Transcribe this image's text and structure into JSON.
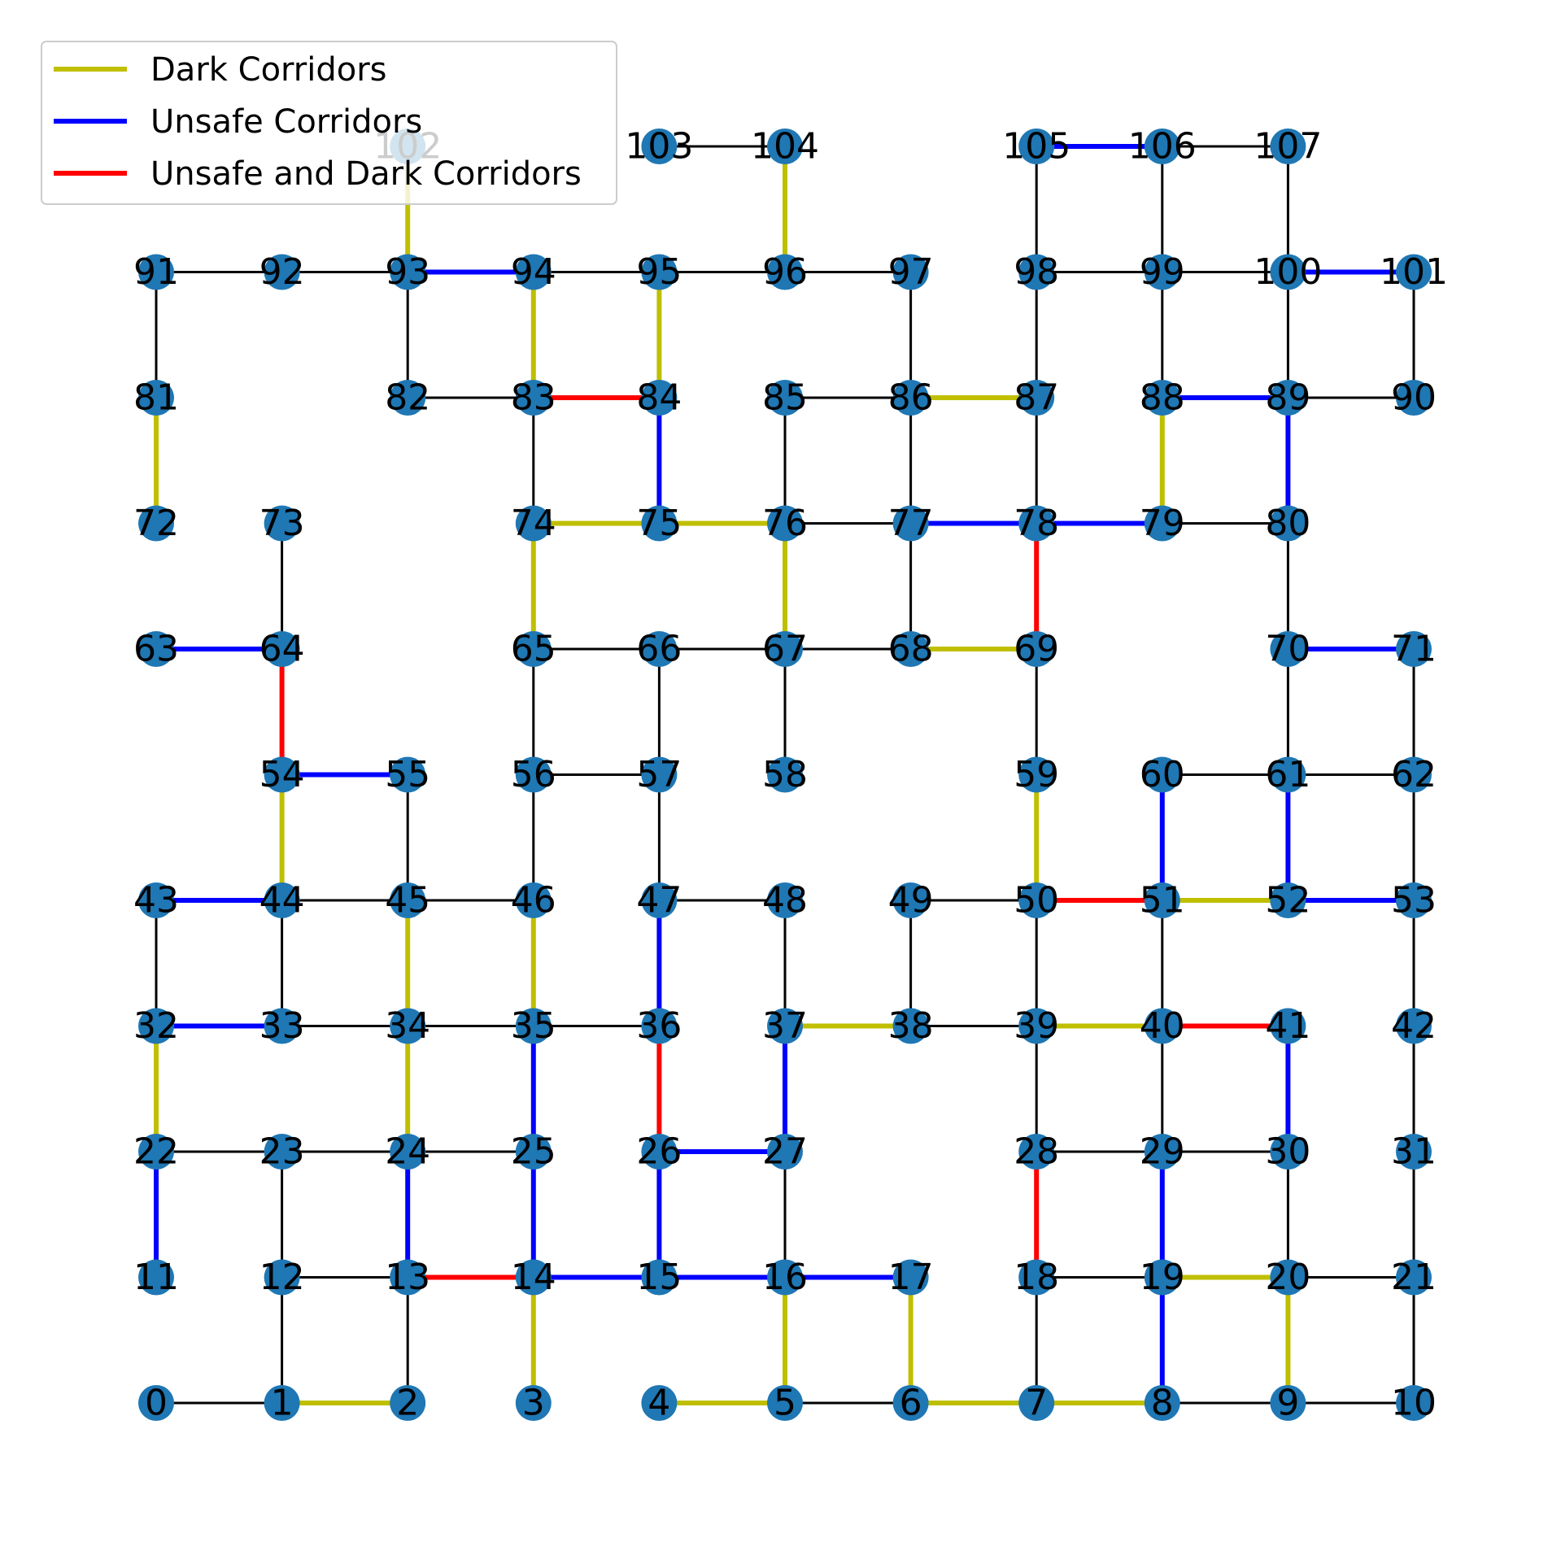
{
  "colors": {
    "normal": "#000000",
    "dark": "#bfbf00",
    "unsafe": "#0000ff",
    "unsafe_dark": "#ff0000",
    "node": "#1f77b4",
    "legend_border": "#cccccc"
  },
  "legend": {
    "placement": "upper-left",
    "entries": [
      {
        "label": "Dark Corridors",
        "type": "dark"
      },
      {
        "label": "Unsafe Corridors",
        "type": "unsafe"
      },
      {
        "label": "Unsafe and Dark Corridors",
        "type": "unsafe_dark"
      }
    ]
  },
  "graph": {
    "layout": "grid",
    "nodes": [
      {
        "id": 0,
        "col": 0,
        "row": 0
      },
      {
        "id": 1,
        "col": 1,
        "row": 0
      },
      {
        "id": 2,
        "col": 2,
        "row": 0
      },
      {
        "id": 3,
        "col": 3,
        "row": 0
      },
      {
        "id": 4,
        "col": 4,
        "row": 0
      },
      {
        "id": 5,
        "col": 5,
        "row": 0
      },
      {
        "id": 6,
        "col": 6,
        "row": 0
      },
      {
        "id": 7,
        "col": 7,
        "row": 0
      },
      {
        "id": 8,
        "col": 8,
        "row": 0
      },
      {
        "id": 9,
        "col": 9,
        "row": 0
      },
      {
        "id": 10,
        "col": 10,
        "row": 0
      },
      {
        "id": 11,
        "col": 0,
        "row": 1
      },
      {
        "id": 12,
        "col": 1,
        "row": 1
      },
      {
        "id": 13,
        "col": 2,
        "row": 1
      },
      {
        "id": 14,
        "col": 3,
        "row": 1
      },
      {
        "id": 15,
        "col": 4,
        "row": 1
      },
      {
        "id": 16,
        "col": 5,
        "row": 1
      },
      {
        "id": 17,
        "col": 6,
        "row": 1
      },
      {
        "id": 18,
        "col": 7,
        "row": 1
      },
      {
        "id": 19,
        "col": 8,
        "row": 1
      },
      {
        "id": 20,
        "col": 9,
        "row": 1
      },
      {
        "id": 21,
        "col": 10,
        "row": 1
      },
      {
        "id": 22,
        "col": 0,
        "row": 2
      },
      {
        "id": 23,
        "col": 1,
        "row": 2
      },
      {
        "id": 24,
        "col": 2,
        "row": 2
      },
      {
        "id": 25,
        "col": 3,
        "row": 2
      },
      {
        "id": 26,
        "col": 4,
        "row": 2
      },
      {
        "id": 27,
        "col": 5,
        "row": 2
      },
      {
        "id": 28,
        "col": 7,
        "row": 2
      },
      {
        "id": 29,
        "col": 8,
        "row": 2
      },
      {
        "id": 30,
        "col": 9,
        "row": 2
      },
      {
        "id": 31,
        "col": 10,
        "row": 2
      },
      {
        "id": 32,
        "col": 0,
        "row": 3
      },
      {
        "id": 33,
        "col": 1,
        "row": 3
      },
      {
        "id": 34,
        "col": 2,
        "row": 3
      },
      {
        "id": 35,
        "col": 3,
        "row": 3
      },
      {
        "id": 36,
        "col": 4,
        "row": 3
      },
      {
        "id": 37,
        "col": 5,
        "row": 3
      },
      {
        "id": 38,
        "col": 6,
        "row": 3
      },
      {
        "id": 39,
        "col": 7,
        "row": 3
      },
      {
        "id": 40,
        "col": 8,
        "row": 3
      },
      {
        "id": 41,
        "col": 9,
        "row": 3
      },
      {
        "id": 42,
        "col": 10,
        "row": 3
      },
      {
        "id": 43,
        "col": 0,
        "row": 4
      },
      {
        "id": 44,
        "col": 1,
        "row": 4
      },
      {
        "id": 45,
        "col": 2,
        "row": 4
      },
      {
        "id": 46,
        "col": 3,
        "row": 4
      },
      {
        "id": 47,
        "col": 4,
        "row": 4
      },
      {
        "id": 48,
        "col": 5,
        "row": 4
      },
      {
        "id": 49,
        "col": 6,
        "row": 4
      },
      {
        "id": 50,
        "col": 7,
        "row": 4
      },
      {
        "id": 51,
        "col": 8,
        "row": 4
      },
      {
        "id": 52,
        "col": 9,
        "row": 4
      },
      {
        "id": 53,
        "col": 10,
        "row": 4
      },
      {
        "id": 54,
        "col": 1,
        "row": 5
      },
      {
        "id": 55,
        "col": 2,
        "row": 5
      },
      {
        "id": 56,
        "col": 3,
        "row": 5
      },
      {
        "id": 57,
        "col": 4,
        "row": 5
      },
      {
        "id": 58,
        "col": 5,
        "row": 5
      },
      {
        "id": 59,
        "col": 7,
        "row": 5
      },
      {
        "id": 60,
        "col": 8,
        "row": 5
      },
      {
        "id": 61,
        "col": 9,
        "row": 5
      },
      {
        "id": 62,
        "col": 10,
        "row": 5
      },
      {
        "id": 63,
        "col": 0,
        "row": 6
      },
      {
        "id": 64,
        "col": 1,
        "row": 6
      },
      {
        "id": 65,
        "col": 3,
        "row": 6
      },
      {
        "id": 66,
        "col": 4,
        "row": 6
      },
      {
        "id": 67,
        "col": 5,
        "row": 6
      },
      {
        "id": 68,
        "col": 6,
        "row": 6
      },
      {
        "id": 69,
        "col": 7,
        "row": 6
      },
      {
        "id": 70,
        "col": 9,
        "row": 6
      },
      {
        "id": 71,
        "col": 10,
        "row": 6
      },
      {
        "id": 72,
        "col": 0,
        "row": 7
      },
      {
        "id": 73,
        "col": 1,
        "row": 7
      },
      {
        "id": 74,
        "col": 3,
        "row": 7
      },
      {
        "id": 75,
        "col": 4,
        "row": 7
      },
      {
        "id": 76,
        "col": 5,
        "row": 7
      },
      {
        "id": 77,
        "col": 6,
        "row": 7
      },
      {
        "id": 78,
        "col": 7,
        "row": 7
      },
      {
        "id": 79,
        "col": 8,
        "row": 7
      },
      {
        "id": 80,
        "col": 9,
        "row": 7
      },
      {
        "id": 81,
        "col": 0,
        "row": 8
      },
      {
        "id": 82,
        "col": 2,
        "row": 8
      },
      {
        "id": 83,
        "col": 3,
        "row": 8
      },
      {
        "id": 84,
        "col": 4,
        "row": 8
      },
      {
        "id": 85,
        "col": 5,
        "row": 8
      },
      {
        "id": 86,
        "col": 6,
        "row": 8
      },
      {
        "id": 87,
        "col": 7,
        "row": 8
      },
      {
        "id": 88,
        "col": 8,
        "row": 8
      },
      {
        "id": 89,
        "col": 9,
        "row": 8
      },
      {
        "id": 90,
        "col": 10,
        "row": 8
      },
      {
        "id": 91,
        "col": 0,
        "row": 9
      },
      {
        "id": 92,
        "col": 1,
        "row": 9
      },
      {
        "id": 93,
        "col": 2,
        "row": 9
      },
      {
        "id": 94,
        "col": 3,
        "row": 9
      },
      {
        "id": 95,
        "col": 4,
        "row": 9
      },
      {
        "id": 96,
        "col": 5,
        "row": 9
      },
      {
        "id": 97,
        "col": 6,
        "row": 9
      },
      {
        "id": 98,
        "col": 7,
        "row": 9
      },
      {
        "id": 99,
        "col": 8,
        "row": 9
      },
      {
        "id": 100,
        "col": 9,
        "row": 9
      },
      {
        "id": 101,
        "col": 10,
        "row": 9
      },
      {
        "id": 102,
        "col": 2,
        "row": 10
      },
      {
        "id": 103,
        "col": 4,
        "row": 10
      },
      {
        "id": 104,
        "col": 5,
        "row": 10
      },
      {
        "id": 105,
        "col": 7,
        "row": 10
      },
      {
        "id": 106,
        "col": 8,
        "row": 10
      },
      {
        "id": 107,
        "col": 9,
        "row": 10
      }
    ],
    "edges": [
      [
        0,
        1,
        "normal"
      ],
      [
        1,
        2,
        "dark"
      ],
      [
        4,
        5,
        "dark"
      ],
      [
        5,
        6,
        "normal"
      ],
      [
        6,
        7,
        "dark"
      ],
      [
        7,
        8,
        "dark"
      ],
      [
        8,
        9,
        "normal"
      ],
      [
        9,
        10,
        "normal"
      ],
      [
        12,
        13,
        "normal"
      ],
      [
        13,
        14,
        "unsafe_dark"
      ],
      [
        14,
        15,
        "unsafe"
      ],
      [
        15,
        16,
        "unsafe"
      ],
      [
        16,
        17,
        "unsafe"
      ],
      [
        18,
        19,
        "normal"
      ],
      [
        19,
        20,
        "dark"
      ],
      [
        20,
        21,
        "normal"
      ],
      [
        22,
        23,
        "normal"
      ],
      [
        23,
        24,
        "normal"
      ],
      [
        24,
        25,
        "normal"
      ],
      [
        26,
        27,
        "unsafe"
      ],
      [
        28,
        29,
        "normal"
      ],
      [
        29,
        30,
        "normal"
      ],
      [
        32,
        33,
        "unsafe"
      ],
      [
        33,
        34,
        "normal"
      ],
      [
        34,
        35,
        "normal"
      ],
      [
        35,
        36,
        "normal"
      ],
      [
        37,
        38,
        "dark"
      ],
      [
        38,
        39,
        "normal"
      ],
      [
        39,
        40,
        "dark"
      ],
      [
        40,
        41,
        "unsafe_dark"
      ],
      [
        43,
        44,
        "unsafe"
      ],
      [
        44,
        45,
        "normal"
      ],
      [
        45,
        46,
        "normal"
      ],
      [
        47,
        48,
        "normal"
      ],
      [
        49,
        50,
        "normal"
      ],
      [
        50,
        51,
        "unsafe_dark"
      ],
      [
        51,
        52,
        "dark"
      ],
      [
        52,
        53,
        "unsafe"
      ],
      [
        54,
        55,
        "unsafe"
      ],
      [
        56,
        57,
        "normal"
      ],
      [
        60,
        61,
        "normal"
      ],
      [
        61,
        62,
        "normal"
      ],
      [
        63,
        64,
        "unsafe"
      ],
      [
        65,
        66,
        "normal"
      ],
      [
        66,
        67,
        "normal"
      ],
      [
        67,
        68,
        "normal"
      ],
      [
        68,
        69,
        "dark"
      ],
      [
        70,
        71,
        "unsafe"
      ],
      [
        74,
        75,
        "dark"
      ],
      [
        75,
        76,
        "dark"
      ],
      [
        76,
        77,
        "normal"
      ],
      [
        77,
        78,
        "unsafe"
      ],
      [
        78,
        79,
        "unsafe"
      ],
      [
        79,
        80,
        "normal"
      ],
      [
        82,
        83,
        "normal"
      ],
      [
        83,
        84,
        "unsafe_dark"
      ],
      [
        85,
        86,
        "normal"
      ],
      [
        86,
        87,
        "dark"
      ],
      [
        88,
        89,
        "unsafe"
      ],
      [
        89,
        90,
        "normal"
      ],
      [
        91,
        92,
        "normal"
      ],
      [
        92,
        93,
        "normal"
      ],
      [
        93,
        94,
        "unsafe"
      ],
      [
        94,
        95,
        "normal"
      ],
      [
        95,
        96,
        "normal"
      ],
      [
        96,
        97,
        "normal"
      ],
      [
        98,
        99,
        "normal"
      ],
      [
        99,
        100,
        "normal"
      ],
      [
        100,
        101,
        "unsafe"
      ],
      [
        103,
        104,
        "normal"
      ],
      [
        105,
        106,
        "unsafe"
      ],
      [
        106,
        107,
        "normal"
      ],
      [
        1,
        12,
        "normal"
      ],
      [
        2,
        13,
        "normal"
      ],
      [
        3,
        14,
        "dark"
      ],
      [
        5,
        16,
        "dark"
      ],
      [
        6,
        17,
        "dark"
      ],
      [
        7,
        18,
        "normal"
      ],
      [
        8,
        19,
        "unsafe"
      ],
      [
        9,
        20,
        "dark"
      ],
      [
        10,
        21,
        "normal"
      ],
      [
        11,
        22,
        "unsafe"
      ],
      [
        12,
        23,
        "normal"
      ],
      [
        13,
        24,
        "unsafe"
      ],
      [
        14,
        25,
        "unsafe"
      ],
      [
        15,
        26,
        "unsafe"
      ],
      [
        16,
        27,
        "normal"
      ],
      [
        18,
        28,
        "unsafe_dark"
      ],
      [
        19,
        29,
        "unsafe"
      ],
      [
        20,
        30,
        "normal"
      ],
      [
        21,
        31,
        "normal"
      ],
      [
        22,
        32,
        "dark"
      ],
      [
        24,
        34,
        "dark"
      ],
      [
        25,
        35,
        "unsafe"
      ],
      [
        26,
        36,
        "unsafe_dark"
      ],
      [
        27,
        37,
        "unsafe"
      ],
      [
        28,
        39,
        "normal"
      ],
      [
        29,
        40,
        "normal"
      ],
      [
        30,
        41,
        "unsafe"
      ],
      [
        31,
        42,
        "normal"
      ],
      [
        32,
        43,
        "normal"
      ],
      [
        33,
        44,
        "normal"
      ],
      [
        34,
        45,
        "dark"
      ],
      [
        35,
        46,
        "dark"
      ],
      [
        36,
        47,
        "unsafe"
      ],
      [
        37,
        48,
        "normal"
      ],
      [
        38,
        49,
        "normal"
      ],
      [
        39,
        50,
        "normal"
      ],
      [
        40,
        51,
        "normal"
      ],
      [
        42,
        53,
        "normal"
      ],
      [
        44,
        54,
        "dark"
      ],
      [
        45,
        55,
        "normal"
      ],
      [
        46,
        56,
        "normal"
      ],
      [
        47,
        57,
        "normal"
      ],
      [
        50,
        59,
        "dark"
      ],
      [
        51,
        60,
        "unsafe"
      ],
      [
        52,
        61,
        "unsafe"
      ],
      [
        53,
        62,
        "normal"
      ],
      [
        54,
        64,
        "unsafe_dark"
      ],
      [
        56,
        65,
        "normal"
      ],
      [
        57,
        66,
        "normal"
      ],
      [
        58,
        67,
        "normal"
      ],
      [
        59,
        69,
        "normal"
      ],
      [
        61,
        70,
        "normal"
      ],
      [
        62,
        71,
        "normal"
      ],
      [
        64,
        73,
        "normal"
      ],
      [
        65,
        74,
        "dark"
      ],
      [
        67,
        76,
        "dark"
      ],
      [
        68,
        77,
        "normal"
      ],
      [
        69,
        78,
        "unsafe_dark"
      ],
      [
        70,
        80,
        "normal"
      ],
      [
        72,
        81,
        "dark"
      ],
      [
        74,
        83,
        "normal"
      ],
      [
        75,
        84,
        "unsafe"
      ],
      [
        76,
        85,
        "normal"
      ],
      [
        77,
        86,
        "normal"
      ],
      [
        78,
        87,
        "normal"
      ],
      [
        79,
        88,
        "dark"
      ],
      [
        80,
        89,
        "unsafe"
      ],
      [
        81,
        91,
        "normal"
      ],
      [
        82,
        93,
        "normal"
      ],
      [
        83,
        94,
        "dark"
      ],
      [
        84,
        95,
        "dark"
      ],
      [
        86,
        97,
        "normal"
      ],
      [
        87,
        98,
        "normal"
      ],
      [
        88,
        99,
        "normal"
      ],
      [
        89,
        100,
        "normal"
      ],
      [
        90,
        101,
        "normal"
      ],
      [
        93,
        102,
        "dark"
      ],
      [
        96,
        104,
        "dark"
      ],
      [
        98,
        105,
        "normal"
      ],
      [
        99,
        106,
        "normal"
      ],
      [
        100,
        107,
        "normal"
      ]
    ]
  }
}
